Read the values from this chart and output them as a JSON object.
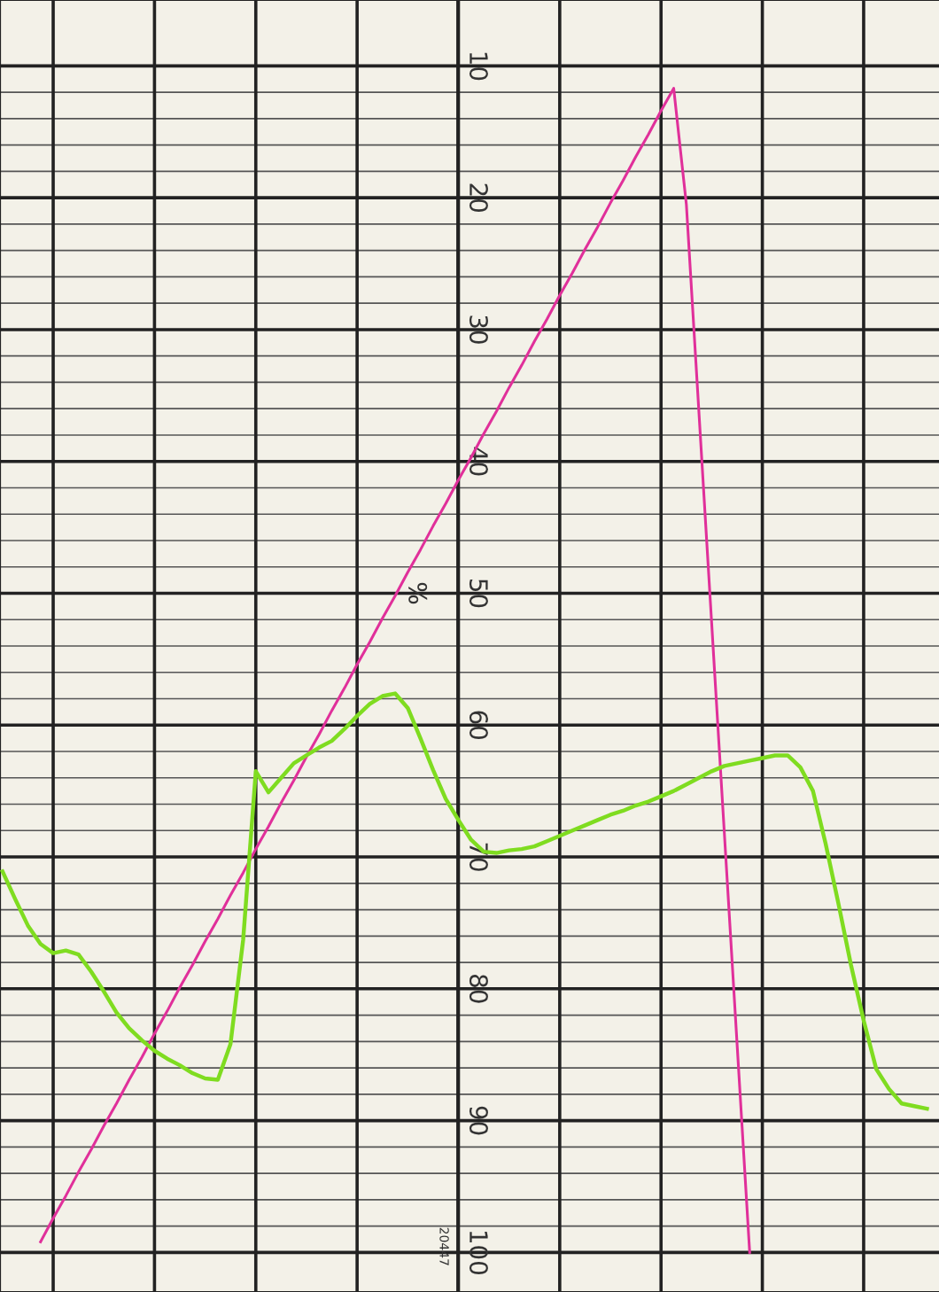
{
  "chart_data": {
    "type": "line",
    "ylabel": "%",
    "annotations": [
      "20447"
    ],
    "categories": [
      null,
      null,
      null,
      null,
      null,
      null,
      null,
      null,
      null,
      null,
      null,
      null,
      null,
      null,
      null,
      null,
      null,
      null,
      null,
      null,
      null,
      null,
      null,
      null,
      null,
      null,
      null,
      null,
      null,
      null,
      null,
      null,
      null,
      null,
      null,
      null,
      null,
      null,
      null,
      null,
      null,
      null,
      null,
      null,
      null,
      null,
      null,
      null,
      null,
      null,
      null,
      null,
      null,
      null,
      null,
      null,
      null,
      null,
      null,
      null,
      null,
      null,
      null,
      null,
      null,
      null,
      null,
      null,
      null,
      null,
      null,
      null,
      null,
      null
    ],
    "series": [
      {
        "color": "#e0309a",
        "values": [
          null,
          null,
          null,
          99.2,
          97.4,
          95.7,
          93.9,
          92.2,
          90.4,
          88.7,
          86.9,
          85.2,
          83.4,
          81.7,
          79.9,
          78.2,
          76.4,
          74.7,
          72.9,
          71.2,
          69.4,
          67.7,
          65.9,
          64.2,
          62.4,
          60.7,
          58.9,
          57.2,
          55.4,
          53.7,
          51.9,
          50.2,
          48.4,
          46.7,
          44.9,
          43.2,
          41.4,
          39.7,
          37.9,
          36.2,
          34.4,
          32.7,
          30.9,
          29.2,
          27.4,
          25.7,
          23.9,
          22.2,
          20.4,
          18.7,
          16.9,
          15.2,
          13.4,
          11.7,
          20.5,
          36.4,
          52.3,
          68.2,
          84.1,
          100.0,
          null,
          null,
          null,
          null,
          null,
          null,
          null,
          null,
          null,
          null,
          null,
          null,
          null,
          null
        ]
      },
      {
        "color": "#7fdc20",
        "values": [
          71.1,
          73.2,
          75.2,
          76.6,
          77.3,
          77.1,
          77.4,
          78.7,
          80.2,
          81.8,
          83.0,
          83.9,
          84.7,
          85.3,
          85.8,
          86.4,
          86.8,
          86.9,
          84.2,
          76.3,
          63.5,
          65.1,
          64.0,
          62.9,
          62.3,
          61.7,
          61.2,
          60.3,
          59.3,
          58.4,
          57.8,
          57.6,
          58.7,
          61.0,
          63.4,
          65.6,
          67.2,
          68.7,
          69.6,
          69.7,
          69.5,
          69.4,
          69.2,
          68.8,
          68.4,
          68.0,
          67.6,
          67.2,
          66.8,
          66.5,
          66.1,
          65.8,
          65.4,
          65.0,
          64.5,
          64.0,
          63.5,
          63.1,
          62.9,
          62.7,
          62.5,
          62.3,
          62.3,
          63.2,
          65.0,
          69.0,
          73.5,
          78.2,
          82.4,
          86.1,
          87.6,
          88.7,
          88.9,
          89.1
        ]
      }
    ],
    "ylim": [
      103,
      5
    ],
    "yticks": [
      10,
      {
        "value": 12,
        "label": null
      },
      {
        "value": 14,
        "label": null
      },
      {
        "value": 16,
        "label": null
      },
      {
        "value": 18,
        "label": null
      },
      20,
      {
        "value": 22,
        "label": null
      },
      {
        "value": 24,
        "label": null
      },
      {
        "value": 26,
        "label": null
      },
      {
        "value": 28,
        "label": null
      },
      30,
      {
        "value": 32,
        "label": null
      },
      {
        "value": 34,
        "label": null
      },
      {
        "value": 36,
        "label": null
      },
      {
        "value": 38,
        "label": null
      },
      40,
      {
        "value": 42,
        "label": null
      },
      {
        "value": 44,
        "label": null
      },
      {
        "value": 46,
        "label": null
      },
      {
        "value": 48,
        "label": null
      },
      50,
      {
        "value": 52,
        "label": null
      },
      {
        "value": 54,
        "label": null
      },
      {
        "value": 56,
        "label": null
      },
      {
        "value": 58,
        "label": null
      },
      60,
      {
        "value": 62,
        "label": null
      },
      {
        "value": 64,
        "label": null
      },
      {
        "value": 66,
        "label": null
      },
      {
        "value": 68,
        "label": null
      },
      70,
      {
        "value": 72,
        "label": null
      },
      {
        "value": 74,
        "label": null
      },
      {
        "value": 76,
        "label": null
      },
      {
        "value": 78,
        "label": null
      },
      80,
      {
        "value": 82,
        "label": null
      },
      {
        "value": 84,
        "label": null
      },
      {
        "value": 86,
        "label": null
      },
      {
        "value": 88,
        "label": null
      },
      90,
      {
        "value": 92,
        "label": null
      },
      {
        "value": 94,
        "label": null
      },
      {
        "value": 96,
        "label": null
      },
      {
        "value": 98,
        "label": null
      },
      100
    ],
    "grid": true,
    "legend": false,
    "marker": "none",
    "line_style": "solid"
  }
}
